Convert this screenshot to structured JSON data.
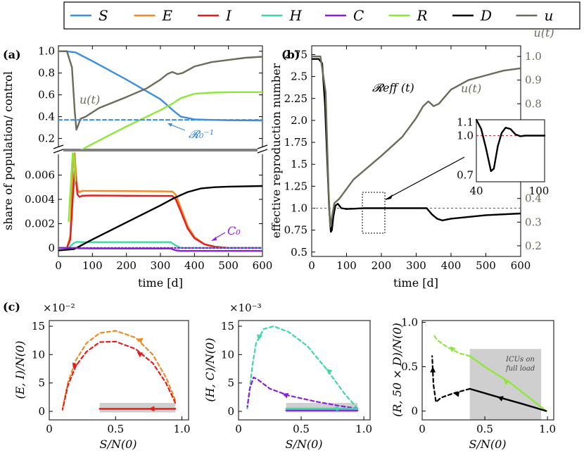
{
  "legend": [
    {
      "label": "S",
      "color": "#3b8ee0"
    },
    {
      "label": "E",
      "color": "#f08a24"
    },
    {
      "label": "I",
      "color": "#e31e1e"
    },
    {
      "label": "H",
      "color": "#3fd6a8"
    },
    {
      "label": "C",
      "color": "#8a1fe0"
    },
    {
      "label": "R",
      "color": "#8ee83a"
    },
    {
      "label": "D",
      "color": "#000000"
    },
    {
      "label": "u",
      "color": "#6b6b5a"
    }
  ],
  "panels": {
    "a": {
      "tag": "(a)",
      "ylabel": "share of population/ control",
      "xlabel": "time [d]",
      "u_label": "u(t)",
      "r0_label": "𝓡₀⁻¹",
      "c0_label": "C₀"
    },
    "b": {
      "tag": "(b)",
      "ylabel": "effective reproduction number",
      "xlabel": "time [d]",
      "right_label": "u(t)",
      "u_label": "u(t)",
      "reff_label": "𝓡eff (t)",
      "one_label": "1.0",
      "inset_one_label": "1.0"
    },
    "c": {
      "tag": "(c)",
      "scale1": "×10⁻²",
      "scale2": "×10⁻³",
      "ylabel1": "(E, I)/N(0)",
      "ylabel2": "(H, C)/N(0)",
      "ylabel3": "(R, 50 × D)/N(0)",
      "xlabel": "S/N(0)",
      "icu_note_1": "ICUs on",
      "icu_note_2": "full load"
    }
  },
  "chart_data": [
    {
      "id": "a_top",
      "type": "line",
      "xlim": [
        0,
        600
      ],
      "ylim": [
        0.1,
        1.05
      ],
      "yticks": [
        "0.2",
        "0.4",
        "0.6",
        "0.8",
        "1.0"
      ],
      "series": [
        {
          "name": "S",
          "color": "#3b8ee0",
          "x": [
            0,
            20,
            50,
            100,
            200,
            300,
            340,
            360,
            400,
            450,
            500,
            600
          ],
          "y": [
            1,
            1,
            0.99,
            0.91,
            0.74,
            0.56,
            0.45,
            0.4,
            0.375,
            0.37,
            0.367,
            0.365
          ]
        },
        {
          "name": "R",
          "color": "#8ee83a",
          "x": [
            65,
            100,
            200,
            300,
            330,
            360,
            400,
            450,
            500,
            600
          ],
          "y": [
            0.09,
            0.15,
            0.31,
            0.46,
            0.51,
            0.57,
            0.61,
            0.62,
            0.625,
            0.625
          ]
        },
        {
          "name": "u",
          "color": "#6b6b5a",
          "x": [
            0,
            25,
            40,
            48,
            53,
            58,
            65,
            80,
            120,
            200,
            260,
            300,
            320,
            335,
            350,
            365,
            400,
            450,
            500,
            550,
            600
          ],
          "y": [
            1,
            1,
            0.85,
            0.45,
            0.28,
            0.32,
            0.38,
            0.4,
            0.48,
            0.58,
            0.66,
            0.74,
            0.79,
            0.81,
            0.79,
            0.8,
            0.86,
            0.9,
            0.92,
            0.94,
            0.95
          ]
        },
        {
          "name": "R0inv",
          "color": "#3b8ee0",
          "dashed": true,
          "x": [
            0,
            600
          ],
          "y": [
            0.37,
            0.37
          ]
        }
      ]
    },
    {
      "id": "a_bottom",
      "type": "line",
      "xlim": [
        0,
        600
      ],
      "ylim": [
        -0.0007,
        0.008
      ],
      "yticks": [
        "0",
        "0.002",
        "0.004",
        "0.006"
      ],
      "series": [
        {
          "name": "E",
          "color": "#f08a24",
          "x": [
            0,
            25,
            35,
            42,
            48,
            52,
            56,
            62,
            70,
            100,
            200,
            300,
            335,
            345,
            360,
            380,
            400,
            430,
            460,
            500,
            600
          ],
          "y": [
            0,
            0,
            0.001,
            0.0065,
            0.0078,
            0.006,
            0.0048,
            0.0046,
            0.0047,
            0.0047,
            0.00468,
            0.00466,
            0.00465,
            0.0044,
            0.0033,
            0.0018,
            0.0009,
            0.0003,
            0.0001,
            0,
            0
          ]
        },
        {
          "name": "I",
          "color": "#e31e1e",
          "x": [
            0,
            25,
            35,
            42,
            48,
            52,
            56,
            62,
            70,
            100,
            200,
            300,
            335,
            345,
            360,
            380,
            400,
            430,
            460,
            500,
            600
          ],
          "y": [
            0,
            0,
            0.0007,
            0.004,
            0.0064,
            0.0055,
            0.0044,
            0.0042,
            0.0043,
            0.00432,
            0.0043,
            0.00428,
            0.00428,
            0.004,
            0.003,
            0.0016,
            0.0008,
            0.0003,
            0.0001,
            0,
            0
          ]
        },
        {
          "name": "R",
          "color": "#8ee83a",
          "x": [
            30,
            38,
            42,
            46,
            50
          ],
          "y": [
            0.0022,
            0.006,
            0.0078,
            0.0075,
            0.0055
          ]
        },
        {
          "name": "H",
          "color": "#3fd6a8",
          "x": [
            0,
            30,
            45,
            55,
            70,
            200,
            330,
            345,
            360,
            400,
            600
          ],
          "y": [
            0,
            0,
            0.0004,
            0.0005,
            0.00048,
            0.00048,
            0.00048,
            0.0002,
            0,
            0,
            0
          ]
        },
        {
          "name": "C",
          "color": "#8a1fe0",
          "x": [
            0,
            50,
            60,
            80,
            200,
            330,
            345,
            360,
            400,
            600
          ],
          "y": [
            0,
            0,
            -4e-05,
            -4e-05,
            -5e-05,
            -5e-05,
            -0.0002,
            -0.00025,
            -0.00025,
            -0.00025
          ]
        },
        {
          "name": "D",
          "color": "#000000",
          "x": [
            0,
            45,
            60,
            100,
            200,
            300,
            340,
            380,
            420,
            460,
            500,
            600
          ],
          "y": [
            -0.0002,
            -0.0001,
            0.0001,
            0.0007,
            0.0021,
            0.0035,
            0.0041,
            0.0046,
            0.0049,
            0.005,
            0.00505,
            0.0051
          ]
        },
        {
          "name": "C0",
          "color": "#8a1fe0",
          "dashed": true,
          "x": [
            0,
            600
          ],
          "y": [
            0,
            0
          ]
        }
      ]
    },
    {
      "id": "b",
      "type": "line",
      "xlim": [
        0,
        600
      ],
      "ylim": [
        0.45,
        2.85
      ],
      "y2lim": [
        0.155,
        1.045
      ],
      "xticks": [
        "0",
        "100",
        "200",
        "300",
        "400",
        "500",
        "600"
      ],
      "yticks": [
        "0.5",
        "0.75",
        "1.0",
        "1.25",
        "1.5",
        "1.75",
        "2.0",
        "2.25",
        "2.5",
        "2.75"
      ],
      "y2ticks": [
        "0.2",
        "0.3",
        "0.4",
        "0.5",
        "0.6",
        "0.7",
        "0.8",
        "0.9",
        "1.0"
      ],
      "series": [
        {
          "name": "R_eff",
          "color": "#000000",
          "x": [
            0,
            20,
            30,
            38,
            45,
            50,
            55,
            58,
            62,
            68,
            75,
            85,
            100,
            150,
            200,
            300,
            330,
            345,
            360,
            375,
            400,
            450,
            500,
            600
          ],
          "y": [
            2.7,
            2.7,
            2.65,
            2.2,
            1.5,
            1.0,
            0.73,
            0.75,
            0.9,
            1.03,
            1.05,
            1.0,
            0.99,
            1.0,
            1.0,
            1.0,
            1.0,
            0.93,
            0.88,
            0.86,
            0.88,
            0.9,
            0.92,
            0.94
          ]
        },
        {
          "name": "u",
          "color": "#6b6b5a",
          "axis": "right",
          "x": [
            0,
            25,
            40,
            48,
            53,
            58,
            65,
            80,
            120,
            200,
            260,
            300,
            320,
            335,
            350,
            365,
            400,
            450,
            500,
            550,
            600
          ],
          "y": [
            1,
            1,
            0.85,
            0.45,
            0.28,
            0.32,
            0.38,
            0.4,
            0.48,
            0.58,
            0.66,
            0.74,
            0.79,
            0.81,
            0.79,
            0.8,
            0.86,
            0.9,
            0.92,
            0.94,
            0.95
          ]
        }
      ]
    },
    {
      "id": "c1",
      "type": "line",
      "xlim": [
        0,
        1.05
      ],
      "ylim": [
        -1.5,
        16
      ],
      "series": [
        {
          "name": "E",
          "color": "#f08a24",
          "dashed": true,
          "x": [
            0.95,
            0.88,
            0.78,
            0.65,
            0.5,
            0.38,
            0.28,
            0.2,
            0.14,
            0.1
          ],
          "y": [
            2,
            6,
            10,
            13,
            14.2,
            13.8,
            12,
            9,
            5,
            0.5
          ]
        },
        {
          "name": "I",
          "color": "#e31e1e",
          "dashed": true,
          "x": [
            0.95,
            0.88,
            0.78,
            0.65,
            0.5,
            0.38,
            0.28,
            0.2,
            0.14,
            0.1
          ],
          "y": [
            1.5,
            5,
            8.5,
            11,
            12.3,
            12.2,
            10.5,
            8,
            4.5,
            0.3
          ]
        },
        {
          "name": "E_solid",
          "color": "#f08a24",
          "x": [
            0.38,
            0.95
          ],
          "y": [
            0.47,
            0.47
          ]
        },
        {
          "name": "I_solid",
          "color": "#e31e1e",
          "x": [
            0.38,
            0.95
          ],
          "y": [
            0.43,
            0.43
          ]
        }
      ]
    },
    {
      "id": "c2",
      "type": "line",
      "xlim": [
        0,
        1.05
      ],
      "ylim": [
        -1.5,
        16
      ],
      "series": [
        {
          "name": "H",
          "color": "#3fd6a8",
          "dashed": true,
          "x": [
            0.95,
            0.85,
            0.7,
            0.55,
            0.4,
            0.28,
            0.2,
            0.14,
            0.11,
            0.09,
            0.07
          ],
          "y": [
            0.5,
            3,
            7.5,
            11.5,
            14,
            15,
            14.5,
            12,
            8,
            4,
            0.5
          ]
        },
        {
          "name": "C",
          "color": "#8a1fe0",
          "dashed": true,
          "x": [
            0.95,
            0.8,
            0.6,
            0.4,
            0.25,
            0.16,
            0.12,
            0.09,
            0.07
          ],
          "y": [
            0.5,
            1,
            1.8,
            2.8,
            4,
            5.5,
            6,
            4,
            0.8
          ]
        },
        {
          "name": "H_solid",
          "color": "#3fd6a8",
          "x": [
            0.38,
            0.95
          ],
          "y": [
            0.5,
            0.5
          ]
        },
        {
          "name": "C_solid",
          "color": "#8a1fe0",
          "x": [
            0.38,
            0.95
          ],
          "y": [
            0.15,
            0.15
          ]
        }
      ]
    },
    {
      "id": "c3",
      "type": "line",
      "xlim": [
        0,
        1.05
      ],
      "ylim": [
        -0.1,
        1.02
      ],
      "series": [
        {
          "name": "R_dashed",
          "color": "#8ee83a",
          "dashed": true,
          "x": [
            0.38,
            0.3,
            0.2,
            0.12,
            0.09
          ],
          "y": [
            0.62,
            0.65,
            0.72,
            0.8,
            0.86
          ]
        },
        {
          "name": "R_solid",
          "color": "#8ee83a",
          "x": [
            0.38,
            0.5,
            0.7,
            0.9,
            0.99
          ],
          "y": [
            0.62,
            0.5,
            0.32,
            0.1,
            0.0
          ]
        },
        {
          "name": "D_dashed",
          "color": "#000000",
          "dashed": true,
          "x": [
            0.38,
            0.25,
            0.15,
            0.11,
            0.09,
            0.08
          ],
          "y": [
            0.25,
            0.2,
            0.15,
            0.1,
            0.3,
            0.62
          ]
        },
        {
          "name": "D_solid",
          "color": "#000000",
          "x": [
            0.38,
            0.6,
            0.8,
            0.99
          ],
          "y": [
            0.25,
            0.16,
            0.08,
            0.0
          ]
        }
      ]
    }
  ]
}
